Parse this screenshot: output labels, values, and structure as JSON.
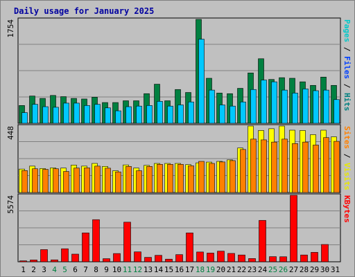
{
  "chart_data": {
    "type": "bar",
    "title": "Daily usage for January 2025",
    "categories": [
      "1",
      "2",
      "3",
      "4",
      "5",
      "6",
      "7",
      "8",
      "9",
      "10",
      "11",
      "12",
      "13",
      "14",
      "15",
      "16",
      "17",
      "18",
      "19",
      "20",
      "21",
      "22",
      "23",
      "24",
      "25",
      "26",
      "27",
      "28",
      "29",
      "30",
      "31"
    ],
    "weekend_days": [
      "4",
      "5",
      "11",
      "12",
      "18",
      "19",
      "25",
      "26"
    ],
    "panels": [
      {
        "id": "hits-files-pages",
        "ymax": 1754,
        "ymax_label": "1754",
        "axis_label": [
          "Pages",
          "Files",
          "Hits"
        ],
        "axis_label_colors": [
          "#00c8c8",
          "#0040ff",
          "#008080"
        ],
        "series": [
          {
            "name": "Hits",
            "color": "#008040",
            "values": [
              300,
              460,
              420,
              470,
              450,
              420,
              410,
              440,
              350,
              350,
              380,
              380,
              500,
              660,
              380,
              570,
              520,
              1754,
              760,
              510,
              500,
              590,
              850,
              1090,
              740,
              770,
              760,
              700,
              640,
              780,
              640
            ]
          },
          {
            "name": "Files",
            "color": "#00c8ff",
            "values": [
              180,
              320,
              280,
              270,
              340,
              340,
              300,
              320,
              260,
              210,
              280,
              290,
              300,
              370,
              290,
              310,
              360,
              1420,
              560,
              310,
              290,
              360,
              570,
              730,
              700,
              560,
              510,
              580,
              550,
              560,
              400
            ]
          },
          {
            "name": "Pages",
            "color": "#00c8c8",
            "values": [
              0,
              0,
              0,
              0,
              0,
              0,
              0,
              0,
              0,
              0,
              0,
              0,
              0,
              0,
              0,
              0,
              0,
              0,
              0,
              0,
              0,
              0,
              0,
              0,
              0,
              0,
              0,
              0,
              0,
              0,
              0
            ]
          }
        ]
      },
      {
        "id": "visits-sites",
        "ymax": 448,
        "ymax_label": "448",
        "axis_label": [
          "Sites",
          "Visits"
        ],
        "axis_label_colors": [
          "#ff8000",
          "#e8e800"
        ],
        "series": [
          {
            "name": "Visits",
            "color": "#ffff00",
            "values": [
              158,
              178,
              162,
              166,
              165,
              185,
              178,
              196,
              176,
              147,
              186,
              165,
              183,
              196,
              196,
              196,
              188,
              200,
              205,
              210,
              220,
              300,
              448,
              418,
              430,
              448,
              420,
              418,
              390,
              420,
              375
            ]
          },
          {
            "name": "Sites",
            "color": "#ff8000",
            "values": [
              148,
              160,
              156,
              160,
              142,
              165,
              166,
              178,
              164,
              139,
              176,
              147,
              176,
              190,
              190,
              190,
              180,
              210,
              196,
              206,
              215,
              290,
              360,
              355,
              340,
              360,
              330,
              340,
              320,
              370,
              345
            ]
          }
        ]
      },
      {
        "id": "kbytes",
        "ymax": 5574,
        "ymax_label": "5574",
        "axis_label": [
          "KBytes"
        ],
        "axis_label_colors": [
          "#ff0000"
        ],
        "series": [
          {
            "name": "KBytes",
            "color": "#ff0000",
            "values": [
              80,
              150,
              1020,
              160,
              1090,
              640,
              2420,
              3530,
              260,
              690,
              3320,
              830,
              370,
              540,
              220,
              600,
              2420,
              820,
              730,
              890,
              700,
              570,
              270,
              3470,
              430,
              420,
              5574,
              570,
              790,
              1450,
              0
            ]
          }
        ]
      }
    ]
  }
}
